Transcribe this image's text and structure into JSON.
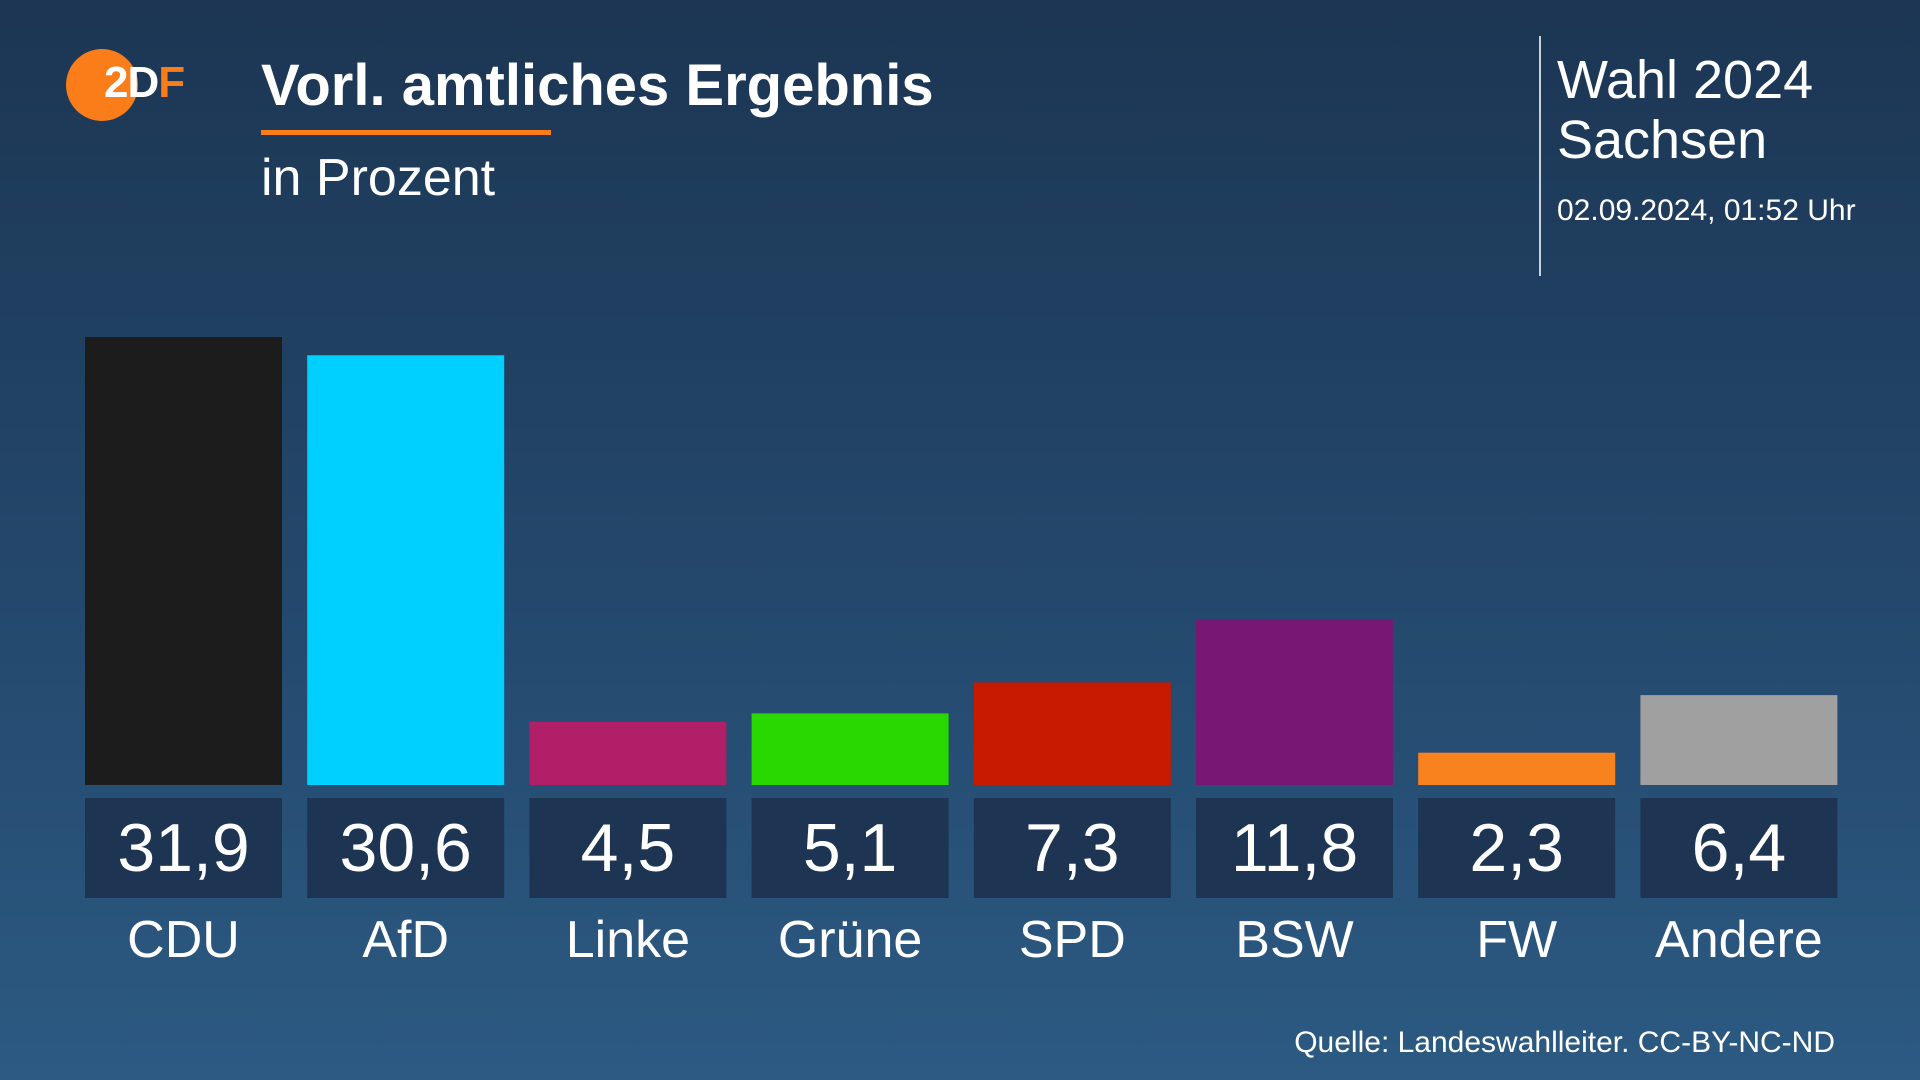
{
  "header": {
    "logo_text": "2DF",
    "title": "Vorl. amtliches Ergebnis",
    "subtitle": "in Prozent",
    "election_title": "Wahl 2024",
    "election_region": "Sachsen",
    "timestamp": "02.09.2024, 01:52 Uhr"
  },
  "footer": {
    "source": "Quelle: Landeswahlleiter. CC-BY-NC-ND"
  },
  "colors": {
    "accent": "#fa7d19",
    "label_box": "#1d3553"
  },
  "chart_data": {
    "type": "bar",
    "title": "Vorl. amtliches Ergebnis",
    "subtitle": "in Prozent",
    "categories": [
      "CDU",
      "AfD",
      "Linke",
      "Grüne",
      "SPD",
      "BSW",
      "FW",
      "Andere"
    ],
    "values": [
      31.9,
      30.6,
      4.5,
      5.1,
      7.3,
      11.8,
      2.3,
      6.4
    ],
    "value_labels": [
      "31,9",
      "30,6",
      "4,5",
      "5,1",
      "7,3",
      "11,8",
      "2,3",
      "6,4"
    ],
    "bar_colors": [
      "#1c1c1c",
      "#00d0ff",
      "#b01f68",
      "#28d800",
      "#c81a00",
      "#771874",
      "#f8821e",
      "#a0a0a0"
    ],
    "xlabel": "",
    "ylabel": "",
    "ylim": [
      0,
      31.9
    ],
    "grid": false,
    "legend": "none"
  }
}
